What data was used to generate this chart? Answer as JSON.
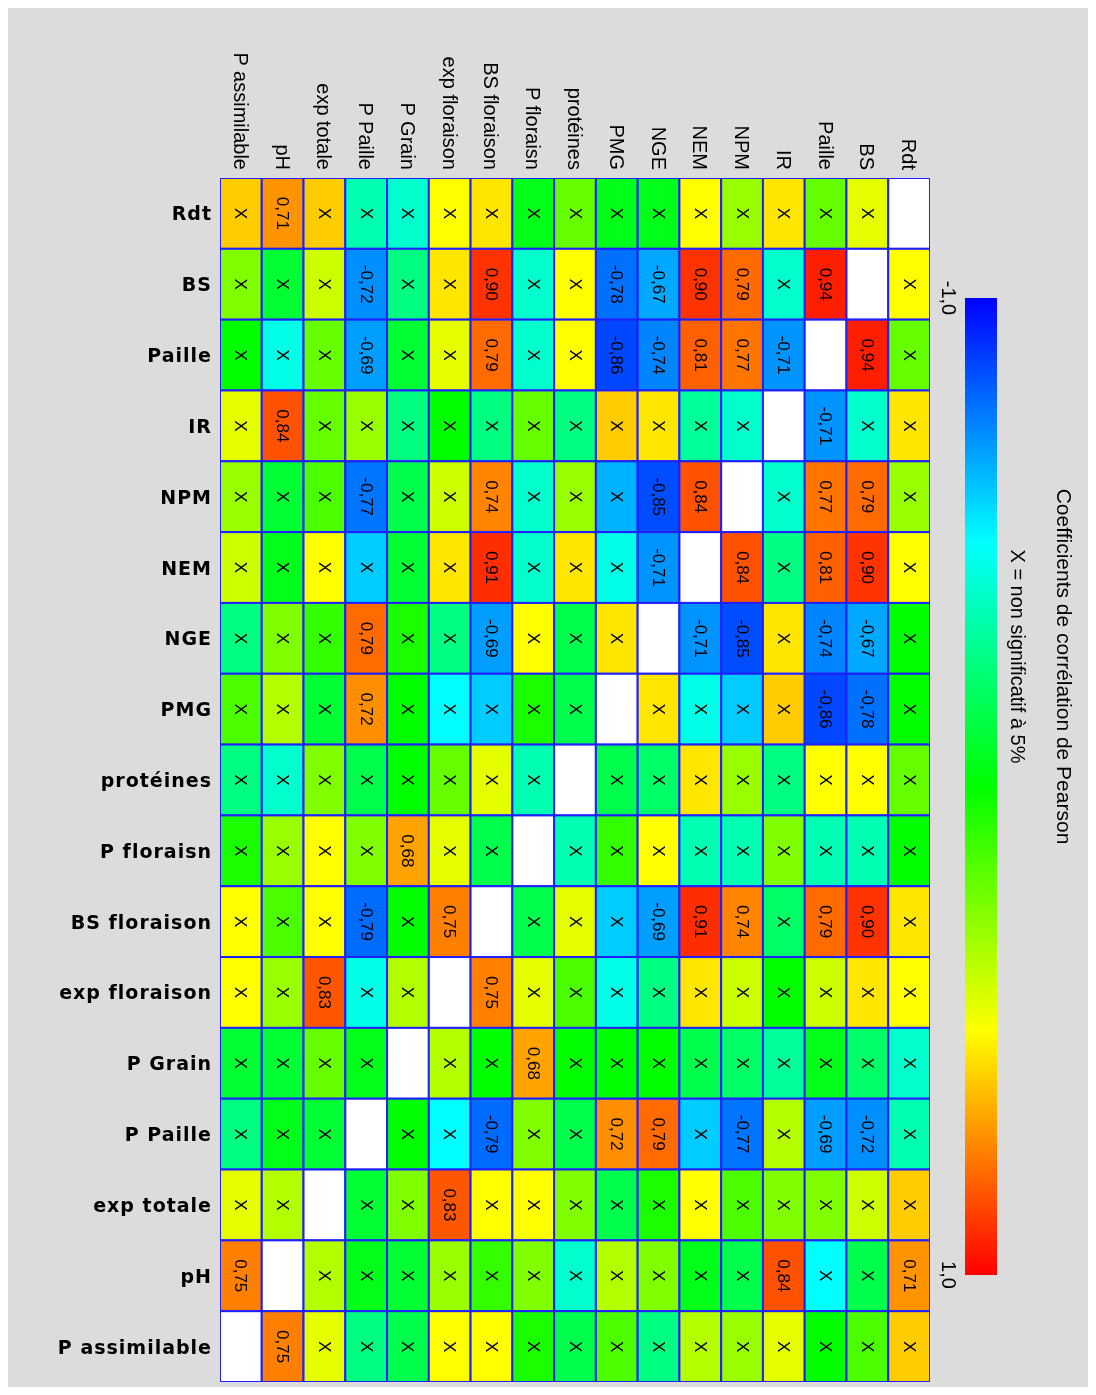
{
  "chart_data": {
    "type": "heatmap",
    "clabel": "Coefficients de corrélation de Pearson",
    "annotations": [
      "X = non significatif à 5%"
    ],
    "categories": [
      "P assimilable",
      "pH",
      "exp totale",
      "P Paille",
      "P Grain",
      "exp floraison",
      "BS floraison",
      "P floraisn",
      "protéines",
      "PMG",
      "NGE",
      "NEM",
      "NPM",
      "IR",
      "Paille",
      "BS",
      "Rdt"
    ],
    "y_categories": [
      "Rdt",
      "BS",
      "Paille",
      "IR",
      "NPM",
      "NEM",
      "NGE",
      "PMG",
      "protéines",
      "P floraisn",
      "BS floraison",
      "exp floraison",
      "P Grain",
      "P Paille",
      "exp totale",
      "pH",
      "P assimilable"
    ],
    "clim": [
      -1,
      1
    ],
    "cticks": [
      {
        "value": -1,
        "label": "-1,0"
      },
      {
        "value": 1,
        "label": "1,0"
      }
    ],
    "cells": [
      [
        0.6,
        0.71,
        0.6,
        -0.35,
        -0.4,
        0.5,
        0.55,
        -0.05,
        0.2,
        -0.05,
        -0.05,
        0.5,
        0.3,
        0.55,
        0.2,
        0.45,
        null
      ],
      [
        0.25,
        -0.1,
        0.4,
        -0.72,
        -0.25,
        0.55,
        0.9,
        -0.4,
        0.5,
        -0.78,
        -0.67,
        0.9,
        0.79,
        -0.4,
        0.94,
        null,
        0.5
      ],
      [
        0,
        -0.45,
        0.2,
        -0.69,
        -0.1,
        0.45,
        0.79,
        -0.4,
        0.5,
        -0.86,
        -0.74,
        0.81,
        0.77,
        -0.71,
        null,
        0.94,
        0.2
      ],
      [
        0.45,
        0.84,
        0.2,
        0.3,
        -0.25,
        0,
        -0.25,
        0.2,
        -0.25,
        0.6,
        0.55,
        -0.3,
        -0.4,
        null,
        -0.71,
        -0.4,
        0.55
      ],
      [
        0.3,
        -0.1,
        0.15,
        -0.77,
        -0.15,
        0.4,
        0.74,
        -0.4,
        0.3,
        -0.65,
        -0.85,
        0.84,
        null,
        -0.4,
        0.77,
        0.79,
        0.3
      ],
      [
        0.4,
        -0.05,
        0.5,
        -0.6,
        -0.1,
        0.55,
        0.91,
        -0.4,
        0.55,
        -0.45,
        -0.71,
        null,
        0.84,
        -0.25,
        0.81,
        0.9,
        0.5
      ],
      [
        -0.25,
        0.25,
        0.1,
        0.79,
        0.05,
        -0.25,
        -0.69,
        0.5,
        -0.15,
        0.55,
        null,
        -0.71,
        -0.85,
        0.55,
        -0.74,
        -0.67,
        0
      ],
      [
        0.15,
        0.35,
        -0.1,
        0.72,
        0,
        -0.5,
        -0.6,
        0.05,
        -0.15,
        null,
        0.55,
        -0.45,
        -0.6,
        0.6,
        -0.86,
        -0.78,
        0
      ],
      [
        -0.25,
        -0.4,
        0.25,
        -0.15,
        0,
        0.2,
        0.45,
        -0.35,
        null,
        -0.15,
        -0.2,
        0.55,
        0.3,
        -0.25,
        0.5,
        0.5,
        0.2
      ],
      [
        0.05,
        0.3,
        0.5,
        0.25,
        0.68,
        0.45,
        -0.15,
        null,
        -0.35,
        0.1,
        0.5,
        -0.35,
        -0.35,
        0.25,
        -0.35,
        -0.35,
        0
      ],
      [
        0.5,
        0.15,
        0.5,
        -0.79,
        0,
        0.75,
        null,
        -0.15,
        0.45,
        -0.6,
        -0.69,
        0.91,
        0.74,
        -0.2,
        0.79,
        0.9,
        0.55
      ],
      [
        0.5,
        0.3,
        0.83,
        -0.45,
        0.35,
        null,
        0.75,
        0.45,
        0.15,
        -0.45,
        -0.25,
        0.55,
        0.4,
        0,
        0.4,
        0.55,
        0.5
      ],
      [
        -0.1,
        -0.1,
        0.2,
        -0.05,
        null,
        0.35,
        0,
        0.68,
        0,
        0,
        0,
        -0.15,
        -0.2,
        -0.3,
        -0.05,
        -0.2,
        -0.4
      ],
      [
        -0.25,
        -0.05,
        -0.1,
        null,
        0,
        -0.5,
        -0.79,
        0.25,
        -0.15,
        0.72,
        0.79,
        -0.6,
        -0.77,
        0.35,
        -0.69,
        -0.72,
        -0.35
      ],
      [
        0.45,
        0.35,
        null,
        -0.1,
        0.25,
        0.83,
        0.5,
        0.5,
        0.25,
        -0.15,
        0.05,
        0.5,
        0.15,
        0.25,
        0.25,
        0.4,
        0.6
      ],
      [
        0.75,
        null,
        0.35,
        -0.05,
        -0.1,
        0.3,
        0.1,
        0.25,
        -0.4,
        0.35,
        0.25,
        -0.05,
        -0.15,
        0.84,
        -0.5,
        -0.15,
        0.71
      ],
      [
        null,
        0.75,
        0.45,
        -0.25,
        -0.15,
        0.5,
        0.5,
        0.05,
        -0.15,
        0.15,
        -0.25,
        0.35,
        0.3,
        0.45,
        0,
        0.15,
        0.6
      ]
    ],
    "cell_labels": [
      [
        "X",
        "0,71",
        "X",
        "X",
        "X",
        "X",
        "X",
        "X",
        "X",
        "X",
        "X",
        "X",
        "X",
        "X",
        "X",
        "X",
        null
      ],
      [
        "X",
        "X",
        "X",
        "-0,72",
        "X",
        "X",
        "0,90",
        "X",
        "X",
        "-0,78",
        "-0,67",
        "0,90",
        "0,79",
        "X",
        "0,94",
        null,
        "X"
      ],
      [
        "X",
        "X",
        "X",
        "-0,69",
        "X",
        "X",
        "0,79",
        "X",
        "X",
        "-0,86",
        "-0,74",
        "0,81",
        "0,77",
        "-0,71",
        null,
        "0,94",
        "X"
      ],
      [
        "X",
        "0,84",
        "X",
        "X",
        "X",
        "X",
        "X",
        "X",
        "X",
        "X",
        "X",
        "X",
        "X",
        null,
        "-0,71",
        "X",
        "X"
      ],
      [
        "X",
        "X",
        "X",
        "-0,77",
        "X",
        "X",
        "0,74",
        "X",
        "X",
        "X",
        "-0,85",
        "0,84",
        null,
        "X",
        "0,77",
        "0,79",
        "X"
      ],
      [
        "X",
        "X",
        "X",
        "X",
        "X",
        "X",
        "0,91",
        "X",
        "X",
        "X",
        "-0,71",
        null,
        "0,84",
        "X",
        "0,81",
        "0,90",
        "X"
      ],
      [
        "X",
        "X",
        "X",
        "0,79",
        "X",
        "X",
        "-0,69",
        "X",
        "X",
        "X",
        null,
        "-0,71",
        "-0,85",
        "X",
        "-0,74",
        "-0,67",
        "X"
      ],
      [
        "X",
        "X",
        "X",
        "0,72",
        "X",
        "X",
        "X",
        "X",
        "X",
        null,
        "X",
        "X",
        "X",
        "X",
        "-0,86",
        "-0,78",
        "X"
      ],
      [
        "X",
        "X",
        "X",
        "X",
        "X",
        "X",
        "X",
        "X",
        null,
        "X",
        "X",
        "X",
        "X",
        "X",
        "X",
        "X",
        "X"
      ],
      [
        "X",
        "X",
        "X",
        "X",
        "0,68",
        "X",
        "X",
        null,
        "X",
        "X",
        "X",
        "X",
        "X",
        "X",
        "X",
        "X",
        "X"
      ],
      [
        "X",
        "X",
        "X",
        "-0,79",
        "X",
        "0,75",
        null,
        "X",
        "X",
        "X",
        "-0,69",
        "0,91",
        "0,74",
        "X",
        "0,79",
        "0,90",
        "X"
      ],
      [
        "X",
        "X",
        "0,83",
        "X",
        "X",
        null,
        "0,75",
        "X",
        "X",
        "X",
        "X",
        "X",
        "X",
        "X",
        "X",
        "X",
        "X"
      ],
      [
        "X",
        "X",
        "X",
        "X",
        null,
        "X",
        "X",
        "0,68",
        "X",
        "X",
        "X",
        "X",
        "X",
        "X",
        "X",
        "X",
        "X"
      ],
      [
        "X",
        "X",
        "X",
        null,
        "X",
        "X",
        "-0,79",
        "X",
        "X",
        "0,72",
        "0,79",
        "X",
        "-0,77",
        "X",
        "-0,69",
        "-0,72",
        "X"
      ],
      [
        "X",
        "X",
        null,
        "X",
        "X",
        "0,83",
        "X",
        "X",
        "X",
        "X",
        "X",
        "X",
        "X",
        "X",
        "X",
        "X",
        "X"
      ],
      [
        "0,75",
        null,
        "X",
        "X",
        "X",
        "X",
        "X",
        "X",
        "X",
        "X",
        "X",
        "X",
        "X",
        "0,84",
        "X",
        "X",
        "0,71"
      ],
      [
        null,
        "0,75",
        "X",
        "X",
        "X",
        "X",
        "X",
        "X",
        "X",
        "X",
        "X",
        "X",
        "X",
        "X",
        "X",
        "X",
        "X"
      ]
    ]
  }
}
